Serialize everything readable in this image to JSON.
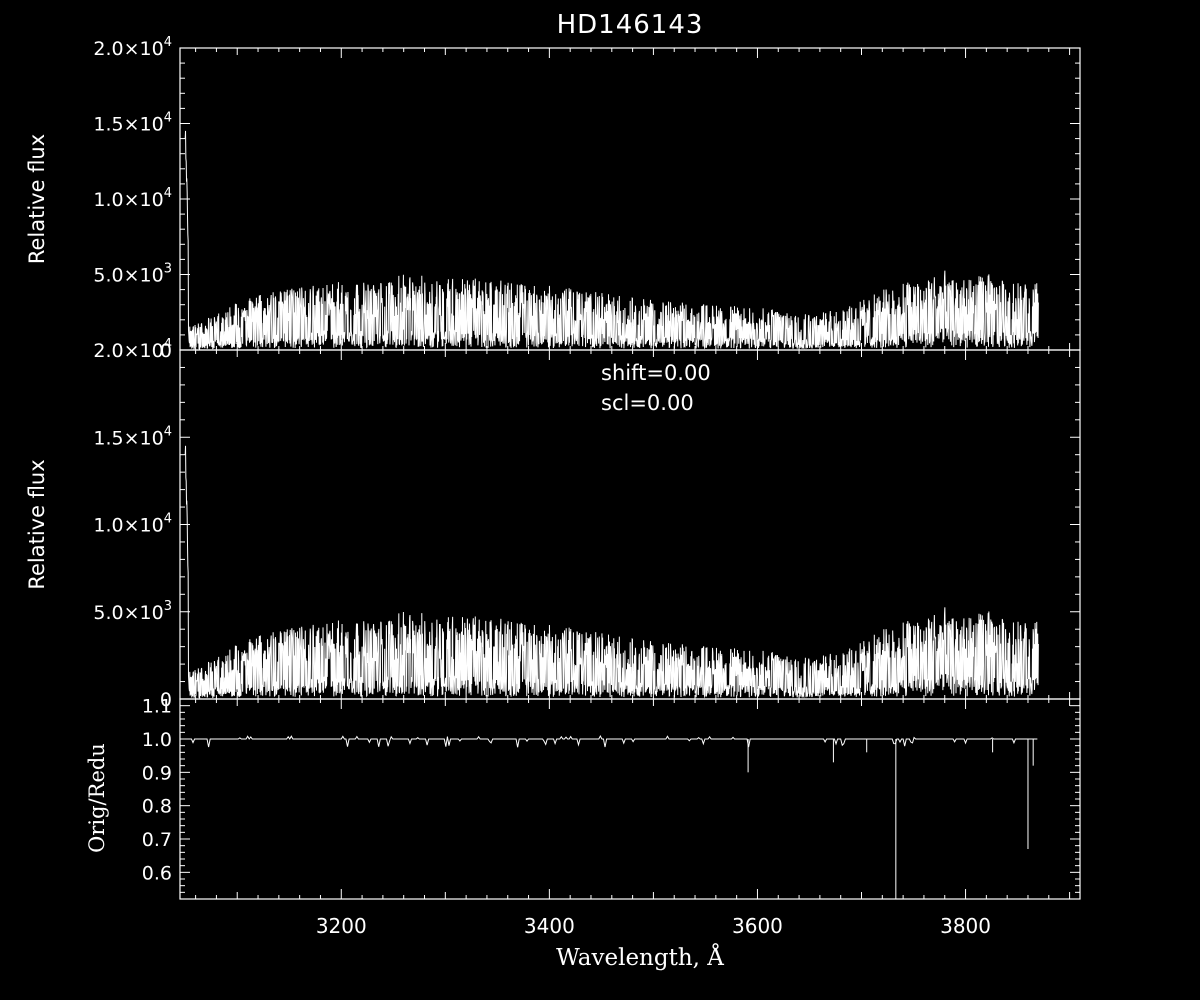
{
  "title": "HD146143",
  "chart_data": [
    {
      "type": "line",
      "panel": "top",
      "ylabel": "Relative flux",
      "xlim": [
        3045,
        3910
      ],
      "ylim": [
        0,
        20000
      ],
      "y_ticks": [
        0,
        5000,
        10000,
        15000,
        20000
      ],
      "y_tick_labels": [
        {
          "base": "0",
          "exp": ""
        },
        {
          "base": "5.0×10",
          "exp": "3"
        },
        {
          "base": "1.0×10",
          "exp": "4"
        },
        {
          "base": "1.5×10",
          "exp": "4"
        },
        {
          "base": "2.0×10",
          "exp": "4"
        }
      ],
      "x_range_data": [
        3050,
        3870
      ],
      "envelope": [
        [
          3050,
          16000
        ],
        [
          3055,
          1700
        ],
        [
          3075,
          2200
        ],
        [
          3100,
          3200
        ],
        [
          3130,
          3800
        ],
        [
          3160,
          4200
        ],
        [
          3200,
          4700
        ],
        [
          3230,
          4400
        ],
        [
          3260,
          5000
        ],
        [
          3300,
          4900
        ],
        [
          3340,
          4700
        ],
        [
          3380,
          4400
        ],
        [
          3420,
          4100
        ],
        [
          3460,
          3700
        ],
        [
          3500,
          3300
        ],
        [
          3540,
          3100
        ],
        [
          3580,
          2900
        ],
        [
          3620,
          2700
        ],
        [
          3660,
          2500
        ],
        [
          3680,
          2700
        ],
        [
          3700,
          3300
        ],
        [
          3730,
          4300
        ],
        [
          3760,
          4900
        ],
        [
          3780,
          5300
        ],
        [
          3800,
          4600
        ],
        [
          3820,
          5100
        ],
        [
          3840,
          4500
        ],
        [
          3860,
          4500
        ],
        [
          3870,
          4500
        ]
      ],
      "grid": false
    },
    {
      "type": "line",
      "panel": "middle",
      "ylabel": "Relative flux",
      "annotations": [
        "shift=0.00",
        "scl=0.00"
      ],
      "xlim": [
        3045,
        3910
      ],
      "ylim": [
        0,
        20000
      ],
      "y_ticks": [
        0,
        5000,
        10000,
        15000,
        20000
      ],
      "y_tick_labels": [
        {
          "base": "0",
          "exp": ""
        },
        {
          "base": "5.0×10",
          "exp": "3"
        },
        {
          "base": "1.0×10",
          "exp": "4"
        },
        {
          "base": "1.5×10",
          "exp": "4"
        },
        {
          "base": "2.0×10",
          "exp": "4"
        }
      ],
      "x_range_data": [
        3050,
        3870
      ],
      "envelope": [
        [
          3050,
          16000
        ],
        [
          3055,
          1700
        ],
        [
          3075,
          2200
        ],
        [
          3100,
          3200
        ],
        [
          3130,
          3800
        ],
        [
          3160,
          4200
        ],
        [
          3200,
          4700
        ],
        [
          3230,
          4400
        ],
        [
          3260,
          5000
        ],
        [
          3300,
          4900
        ],
        [
          3340,
          4700
        ],
        [
          3380,
          4400
        ],
        [
          3420,
          4100
        ],
        [
          3460,
          3700
        ],
        [
          3500,
          3300
        ],
        [
          3540,
          3100
        ],
        [
          3580,
          2900
        ],
        [
          3620,
          2700
        ],
        [
          3660,
          2500
        ],
        [
          3680,
          2700
        ],
        [
          3700,
          3300
        ],
        [
          3730,
          4300
        ],
        [
          3760,
          4900
        ],
        [
          3780,
          5300
        ],
        [
          3800,
          4600
        ],
        [
          3820,
          5100
        ],
        [
          3840,
          4500
        ],
        [
          3860,
          4500
        ],
        [
          3870,
          4500
        ]
      ],
      "grid": false
    },
    {
      "type": "line",
      "panel": "bottom",
      "ylabel": "Orig/Redu",
      "xlabel": "Wavelength, Å",
      "xlim": [
        3045,
        3910
      ],
      "ylim": [
        0.52,
        1.12
      ],
      "x_ticks": [
        3200,
        3400,
        3600,
        3800
      ],
      "x_tick_labels": [
        "3200",
        "3400",
        "3600",
        "3800"
      ],
      "y_ticks": [
        0.6,
        0.7,
        0.8,
        0.9,
        1.0,
        1.1
      ],
      "y_tick_labels": [
        "0.6",
        "0.7",
        "0.8",
        "0.9",
        "1.0",
        "1.1"
      ],
      "baseline": 1.0,
      "x_range_data": [
        3050,
        3870
      ],
      "dips": [
        [
          3591,
          0.9
        ],
        [
          3673,
          0.93
        ],
        [
          3705,
          0.96
        ],
        [
          3733,
          0.52
        ],
        [
          3826,
          0.96
        ],
        [
          3860,
          0.67
        ],
        [
          3865,
          0.92
        ]
      ],
      "grid": false
    }
  ]
}
